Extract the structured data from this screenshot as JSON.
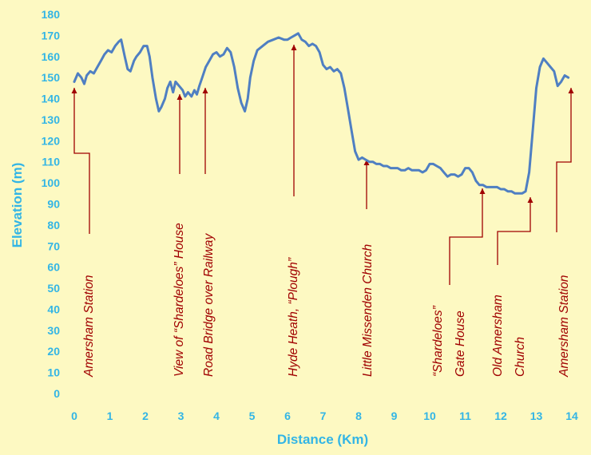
{
  "colors": {
    "background": "#fdf9c2",
    "line": "#4f7fc2",
    "axis_text": "#33b5e5",
    "annotation": "#a00000"
  },
  "chart_data": {
    "type": "line",
    "title": "",
    "xlabel": "Distance (Km)",
    "ylabel": "Elevation (m)",
    "xlim": [
      0,
      14
    ],
    "ylim": [
      0,
      180
    ],
    "xticks": [
      0,
      1,
      2,
      3,
      4,
      5,
      6,
      7,
      8,
      9,
      10,
      11,
      12,
      13,
      14
    ],
    "yticks": [
      0,
      10,
      20,
      30,
      40,
      50,
      60,
      70,
      80,
      90,
      100,
      110,
      120,
      130,
      140,
      150,
      160,
      170,
      180
    ],
    "grid": false,
    "series": [
      {
        "points": [
          [
            0,
            148
          ],
          [
            0.1,
            152
          ],
          [
            0.2,
            150
          ],
          [
            0.28,
            147
          ],
          [
            0.35,
            151
          ],
          [
            0.45,
            153
          ],
          [
            0.55,
            152
          ],
          [
            0.65,
            155
          ],
          [
            0.75,
            158
          ],
          [
            0.85,
            161
          ],
          [
            0.95,
            163
          ],
          [
            1.05,
            162
          ],
          [
            1.15,
            165
          ],
          [
            1.25,
            167
          ],
          [
            1.32,
            168
          ],
          [
            1.42,
            160
          ],
          [
            1.5,
            154
          ],
          [
            1.58,
            153
          ],
          [
            1.68,
            158
          ],
          [
            1.75,
            160
          ],
          [
            1.85,
            162
          ],
          [
            1.95,
            165
          ],
          [
            2.05,
            165
          ],
          [
            2.12,
            160
          ],
          [
            2.2,
            150
          ],
          [
            2.3,
            140
          ],
          [
            2.38,
            134
          ],
          [
            2.45,
            136
          ],
          [
            2.55,
            140
          ],
          [
            2.62,
            145
          ],
          [
            2.7,
            148
          ],
          [
            2.78,
            143
          ],
          [
            2.85,
            148
          ],
          [
            2.95,
            146
          ],
          [
            3.05,
            144
          ],
          [
            3.12,
            141
          ],
          [
            3.2,
            143
          ],
          [
            3.3,
            141
          ],
          [
            3.38,
            144
          ],
          [
            3.45,
            142
          ],
          [
            3.52,
            146
          ],
          [
            3.6,
            150
          ],
          [
            3.7,
            155
          ],
          [
            3.8,
            158
          ],
          [
            3.9,
            161
          ],
          [
            4.0,
            162
          ],
          [
            4.1,
            160
          ],
          [
            4.2,
            161
          ],
          [
            4.3,
            164
          ],
          [
            4.4,
            162
          ],
          [
            4.5,
            155
          ],
          [
            4.6,
            145
          ],
          [
            4.7,
            138
          ],
          [
            4.8,
            134
          ],
          [
            4.88,
            140
          ],
          [
            4.95,
            150
          ],
          [
            5.05,
            158
          ],
          [
            5.15,
            163
          ],
          [
            5.3,
            165
          ],
          [
            5.45,
            167
          ],
          [
            5.6,
            168
          ],
          [
            5.75,
            169
          ],
          [
            5.9,
            168
          ],
          [
            6.0,
            168
          ],
          [
            6.1,
            169
          ],
          [
            6.2,
            170
          ],
          [
            6.3,
            171
          ],
          [
            6.4,
            168
          ],
          [
            6.5,
            167
          ],
          [
            6.6,
            165
          ],
          [
            6.7,
            166
          ],
          [
            6.8,
            165
          ],
          [
            6.9,
            162
          ],
          [
            7.0,
            156
          ],
          [
            7.1,
            154
          ],
          [
            7.2,
            155
          ],
          [
            7.3,
            153
          ],
          [
            7.4,
            154
          ],
          [
            7.5,
            152
          ],
          [
            7.6,
            145
          ],
          [
            7.7,
            135
          ],
          [
            7.8,
            125
          ],
          [
            7.9,
            115
          ],
          [
            8.0,
            111
          ],
          [
            8.1,
            112
          ],
          [
            8.2,
            111
          ],
          [
            8.3,
            110
          ],
          [
            8.4,
            110
          ],
          [
            8.5,
            109
          ],
          [
            8.6,
            109
          ],
          [
            8.7,
            108
          ],
          [
            8.8,
            108
          ],
          [
            8.9,
            107
          ],
          [
            9.0,
            107
          ],
          [
            9.1,
            107
          ],
          [
            9.2,
            106
          ],
          [
            9.3,
            106
          ],
          [
            9.4,
            107
          ],
          [
            9.5,
            106
          ],
          [
            9.6,
            106
          ],
          [
            9.7,
            106
          ],
          [
            9.8,
            105
          ],
          [
            9.9,
            106
          ],
          [
            10.0,
            109
          ],
          [
            10.1,
            109
          ],
          [
            10.2,
            108
          ],
          [
            10.3,
            107
          ],
          [
            10.4,
            105
          ],
          [
            10.5,
            103
          ],
          [
            10.6,
            104
          ],
          [
            10.7,
            104
          ],
          [
            10.8,
            103
          ],
          [
            10.9,
            104
          ],
          [
            11.0,
            107
          ],
          [
            11.1,
            107
          ],
          [
            11.2,
            105
          ],
          [
            11.3,
            101
          ],
          [
            11.4,
            99
          ],
          [
            11.5,
            99
          ],
          [
            11.6,
            98
          ],
          [
            11.7,
            98
          ],
          [
            11.8,
            98
          ],
          [
            11.9,
            98
          ],
          [
            12.0,
            97
          ],
          [
            12.1,
            97
          ],
          [
            12.2,
            96
          ],
          [
            12.3,
            96
          ],
          [
            12.4,
            95
          ],
          [
            12.5,
            95
          ],
          [
            12.6,
            95
          ],
          [
            12.7,
            96
          ],
          [
            12.8,
            105
          ],
          [
            12.9,
            125
          ],
          [
            13.0,
            145
          ],
          [
            13.1,
            155
          ],
          [
            13.2,
            159
          ],
          [
            13.3,
            157
          ],
          [
            13.4,
            155
          ],
          [
            13.5,
            153
          ],
          [
            13.6,
            146
          ],
          [
            13.7,
            148
          ],
          [
            13.8,
            151
          ],
          [
            13.9,
            150
          ]
        ]
      }
    ],
    "annotations": [
      {
        "text": "Amersham Station",
        "line": [
          "View of “Shardeloes” House",
          "Road Bridge over Railway",
          "Hyde Heath,  “Plough”",
          "Little Missenden Church",
          "Shardeloes",
          "Old Amersham Church",
          "Amersham Station"
        ]
      }
    ]
  },
  "annotations": [
    {
      "lines": [
        "Amersham Station"
      ]
    },
    {
      "lines": [
        "View of “Shardeloes” House"
      ]
    },
    {
      "lines": [
        "Road Bridge over Railway"
      ]
    },
    {
      "lines": [
        "Hyde Heath,  “Plough”"
      ]
    },
    {
      "lines": [
        "Little Missenden Church"
      ]
    },
    {
      "lines": [
        "“Shardeloes”",
        "Gate House"
      ]
    },
    {
      "lines": [
        "Old Amersham",
        "Church"
      ]
    },
    {
      "lines": [
        "Amersham Station"
      ]
    }
  ]
}
